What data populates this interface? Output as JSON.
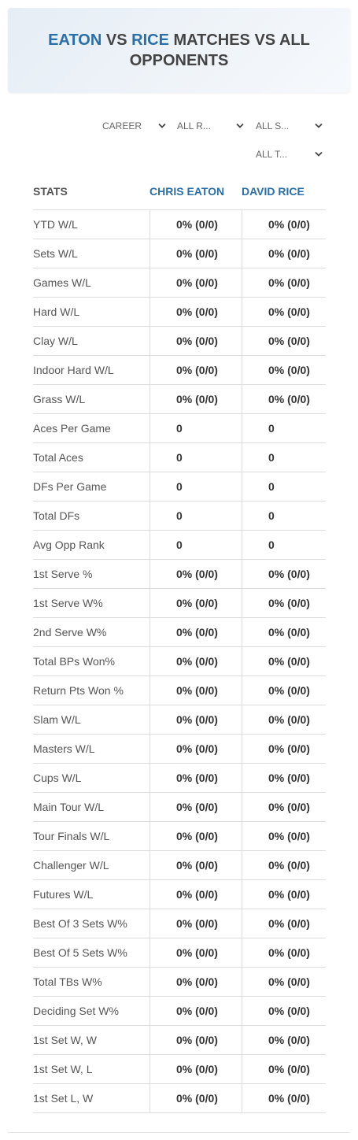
{
  "header": {
    "title": {
      "player1": "EATON",
      "vs": "VS",
      "player2": "RICE",
      "rest": "MATCHES VS ALL OPPONENTS"
    }
  },
  "filters": [
    "CAREER",
    "ALL R...",
    "ALL S...",
    "ALL T..."
  ],
  "table": {
    "columns": [
      "STATS",
      "CHRIS EATON",
      "DAVID RICE"
    ],
    "rows": [
      [
        "YTD W/L",
        "0% (0/0)",
        "0% (0/0)"
      ],
      [
        "Sets W/L",
        "0% (0/0)",
        "0% (0/0)"
      ],
      [
        "Games W/L",
        "0% (0/0)",
        "0% (0/0)"
      ],
      [
        "Hard W/L",
        "0% (0/0)",
        "0% (0/0)"
      ],
      [
        "Clay W/L",
        "0% (0/0)",
        "0% (0/0)"
      ],
      [
        "Indoor Hard W/L",
        "0% (0/0)",
        "0% (0/0)"
      ],
      [
        "Grass W/L",
        "0% (0/0)",
        "0% (0/0)"
      ],
      [
        "Aces Per Game",
        "0",
        "0"
      ],
      [
        "Total Aces",
        "0",
        "0"
      ],
      [
        "DFs Per Game",
        "0",
        "0"
      ],
      [
        "Total DFs",
        "0",
        "0"
      ],
      [
        "Avg Opp Rank",
        "0",
        "0"
      ],
      [
        "1st Serve %",
        "0% (0/0)",
        "0% (0/0)"
      ],
      [
        "1st Serve W%",
        "0% (0/0)",
        "0% (0/0)"
      ],
      [
        "2nd Serve W%",
        "0% (0/0)",
        "0% (0/0)"
      ],
      [
        "Total BPs Won%",
        "0% (0/0)",
        "0% (0/0)"
      ],
      [
        "Return Pts Won %",
        "0% (0/0)",
        "0% (0/0)"
      ],
      [
        "Slam W/L",
        "0% (0/0)",
        "0% (0/0)"
      ],
      [
        "Masters W/L",
        "0% (0/0)",
        "0% (0/0)"
      ],
      [
        "Cups W/L",
        "0% (0/0)",
        "0% (0/0)"
      ],
      [
        "Main Tour W/L",
        "0% (0/0)",
        "0% (0/0)"
      ],
      [
        "Tour Finals W/L",
        "0% (0/0)",
        "0% (0/0)"
      ],
      [
        "Challenger W/L",
        "0% (0/0)",
        "0% (0/0)"
      ],
      [
        "Futures W/L",
        "0% (0/0)",
        "0% (0/0)"
      ],
      [
        "Best Of 3 Sets W%",
        "0% (0/0)",
        "0% (0/0)"
      ],
      [
        "Best Of 5 Sets W%",
        "0% (0/0)",
        "0% (0/0)"
      ],
      [
        "Total TBs W%",
        "0% (0/0)",
        "0% (0/0)"
      ],
      [
        "Deciding Set W%",
        "0% (0/0)",
        "0% (0/0)"
      ],
      [
        "1st Set W, W",
        "0% (0/0)",
        "0% (0/0)"
      ],
      [
        "1st Set W, L",
        "0% (0/0)",
        "0% (0/0)"
      ],
      [
        "1st Set L, W",
        "0% (0/0)",
        "0% (0/0)"
      ]
    ]
  }
}
